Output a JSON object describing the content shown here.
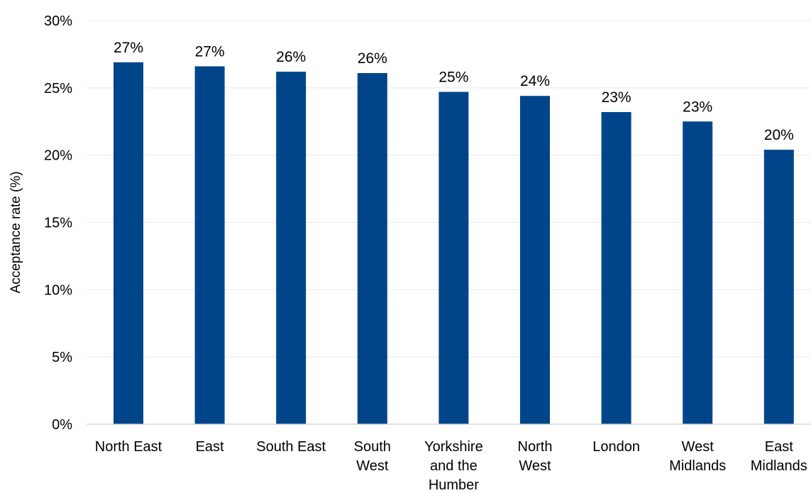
{
  "chart_data": {
    "type": "bar",
    "title": "",
    "xlabel": "",
    "ylabel": "Acceptance rate (%)",
    "ylim": [
      0,
      30
    ],
    "yticks": [
      "0%",
      "5%",
      "10%",
      "15%",
      "20%",
      "25%",
      "30%"
    ],
    "ytick_values": [
      0,
      5,
      10,
      15,
      20,
      25,
      30
    ],
    "grid": true,
    "legend": "none",
    "bar_color": "#00458A",
    "categories": [
      [
        "North East"
      ],
      [
        "East"
      ],
      [
        "South East"
      ],
      [
        "South",
        "West"
      ],
      [
        "Yorkshire",
        "and the",
        "Humber"
      ],
      [
        "North",
        "West"
      ],
      [
        "London"
      ],
      [
        "West",
        "Midlands"
      ],
      [
        "East",
        "Midlands"
      ]
    ],
    "values": [
      26.9,
      26.6,
      26.2,
      26.1,
      24.7,
      24.4,
      23.2,
      22.5,
      20.4
    ],
    "data_labels": [
      "27%",
      "27%",
      "26%",
      "26%",
      "25%",
      "24%",
      "23%",
      "23%",
      "20%"
    ]
  }
}
